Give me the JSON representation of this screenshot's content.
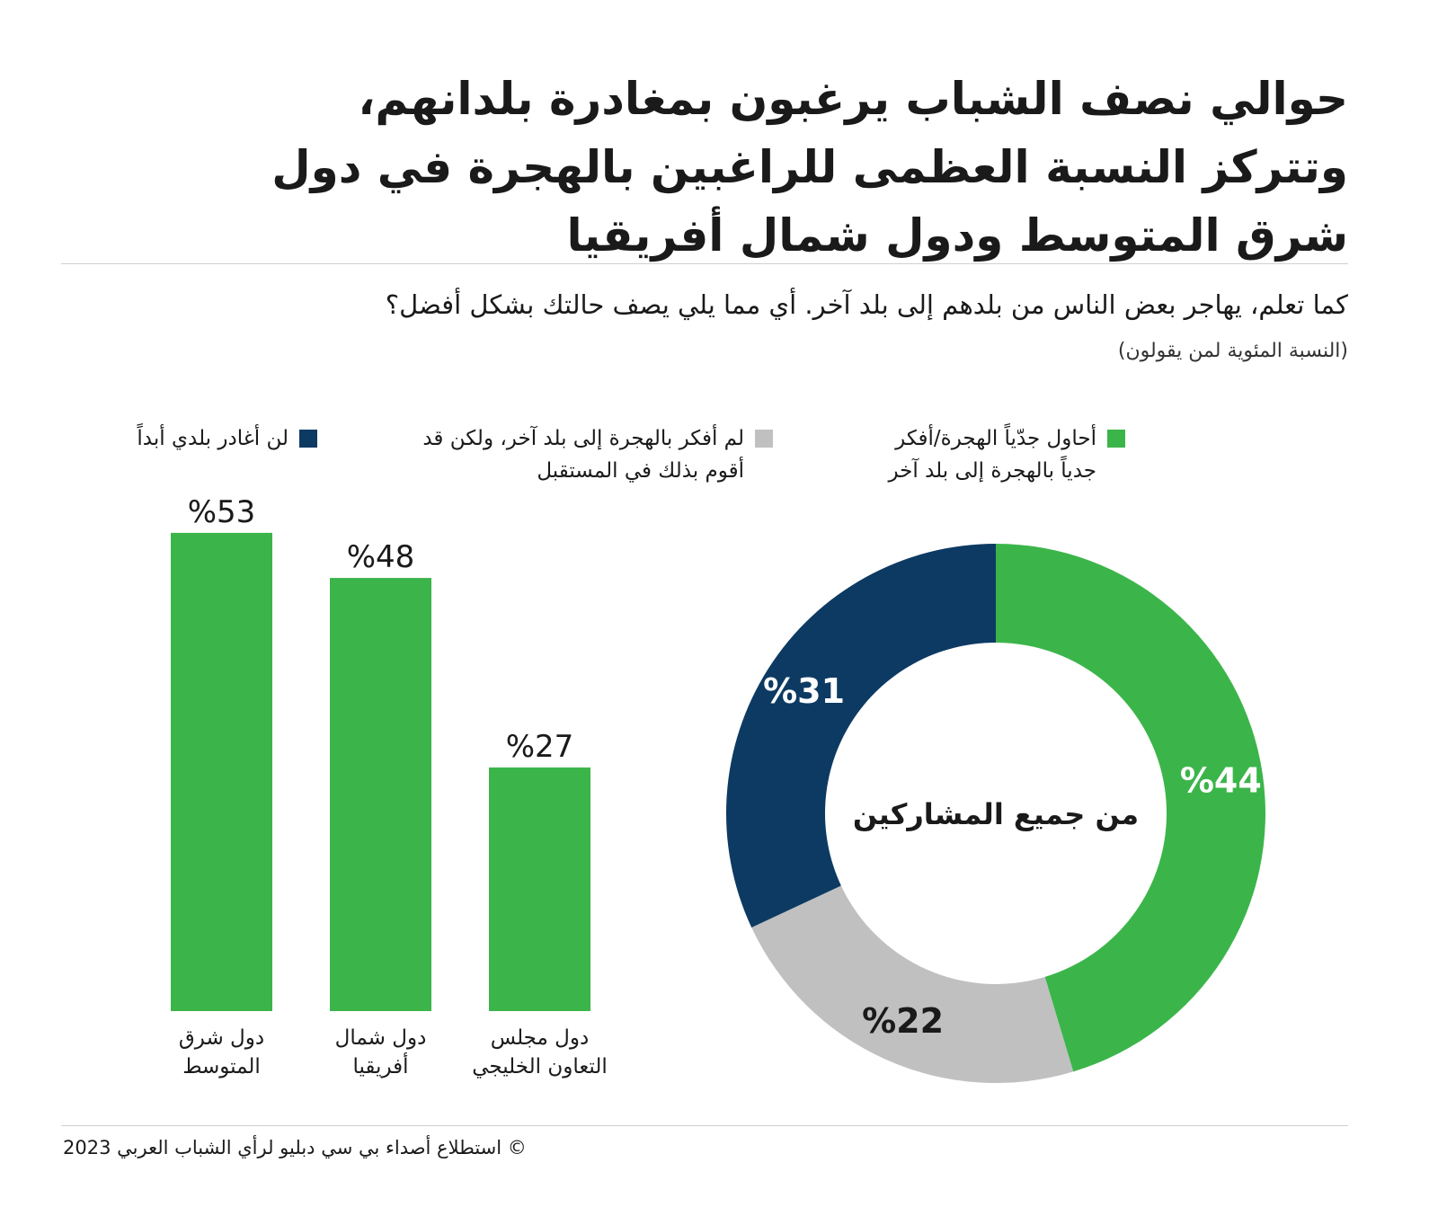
{
  "title": "حوالي نصف الشباب يرغبون بمغادرة بلدانهم، وتتركز النسبة العظمى للراغبين بالهجرة في دول شرق المتوسط ودول شمال أفريقيا",
  "question": "كما تعلم، يهاجر بعض الناس من بلدهم إلى بلد آخر. أي مما يلي يصف حالتك بشكل أفضل؟",
  "note": "(النسبة المئوية لمن يقولون)",
  "legend": [
    {
      "label": "أحاول جدّياً الهجرة/أفكر جدياً بالهجرة إلى بلد آخر",
      "color": "#3bb54a"
    },
    {
      "label": "لم أفكر بالهجرة إلى بلد آخر، ولكن قد أقوم بذلك في المستقبل",
      "color": "#c0c0c0"
    },
    {
      "label": "لن أغادر بلدي أبداً",
      "color": "#0d3a63"
    }
  ],
  "footer": "© استطلاع أصداء بي سي دبليو لرأي الشباب العربي 2023",
  "chart_data": [
    {
      "type": "bar",
      "categories": [
        "دول شرق المتوسط",
        "دول شمال أفريقيا",
        "دول مجلس التعاون الخليجي"
      ],
      "values": [
        53,
        48,
        27
      ],
      "value_labels": [
        "%53",
        "%48",
        "%27"
      ],
      "color": "#3bb54a",
      "series_legend": "أحاول جدّياً الهجرة/أفكر جدياً بالهجرة إلى بلد آخر"
    },
    {
      "type": "pie",
      "donut": true,
      "center_label": "من جميع المشاركين",
      "slices": [
        {
          "legend": "أحاول جدّياً الهجرة/أفكر جدياً بالهجرة إلى بلد آخر",
          "value": 44,
          "label": "%44",
          "color": "#3bb54a",
          "text_color": "#ffffff"
        },
        {
          "legend": "لم أفكر بالهجرة إلى بلد آخر، ولكن قد أقوم بذلك في المستقبل",
          "value": 22,
          "label": "%22",
          "color": "#c0c0c0",
          "text_color": "#1a1a1a"
        },
        {
          "legend": "لن أغادر بلدي أبداً",
          "value": 31,
          "label": "%31",
          "color": "#0d3a63",
          "text_color": "#ffffff"
        }
      ]
    }
  ]
}
